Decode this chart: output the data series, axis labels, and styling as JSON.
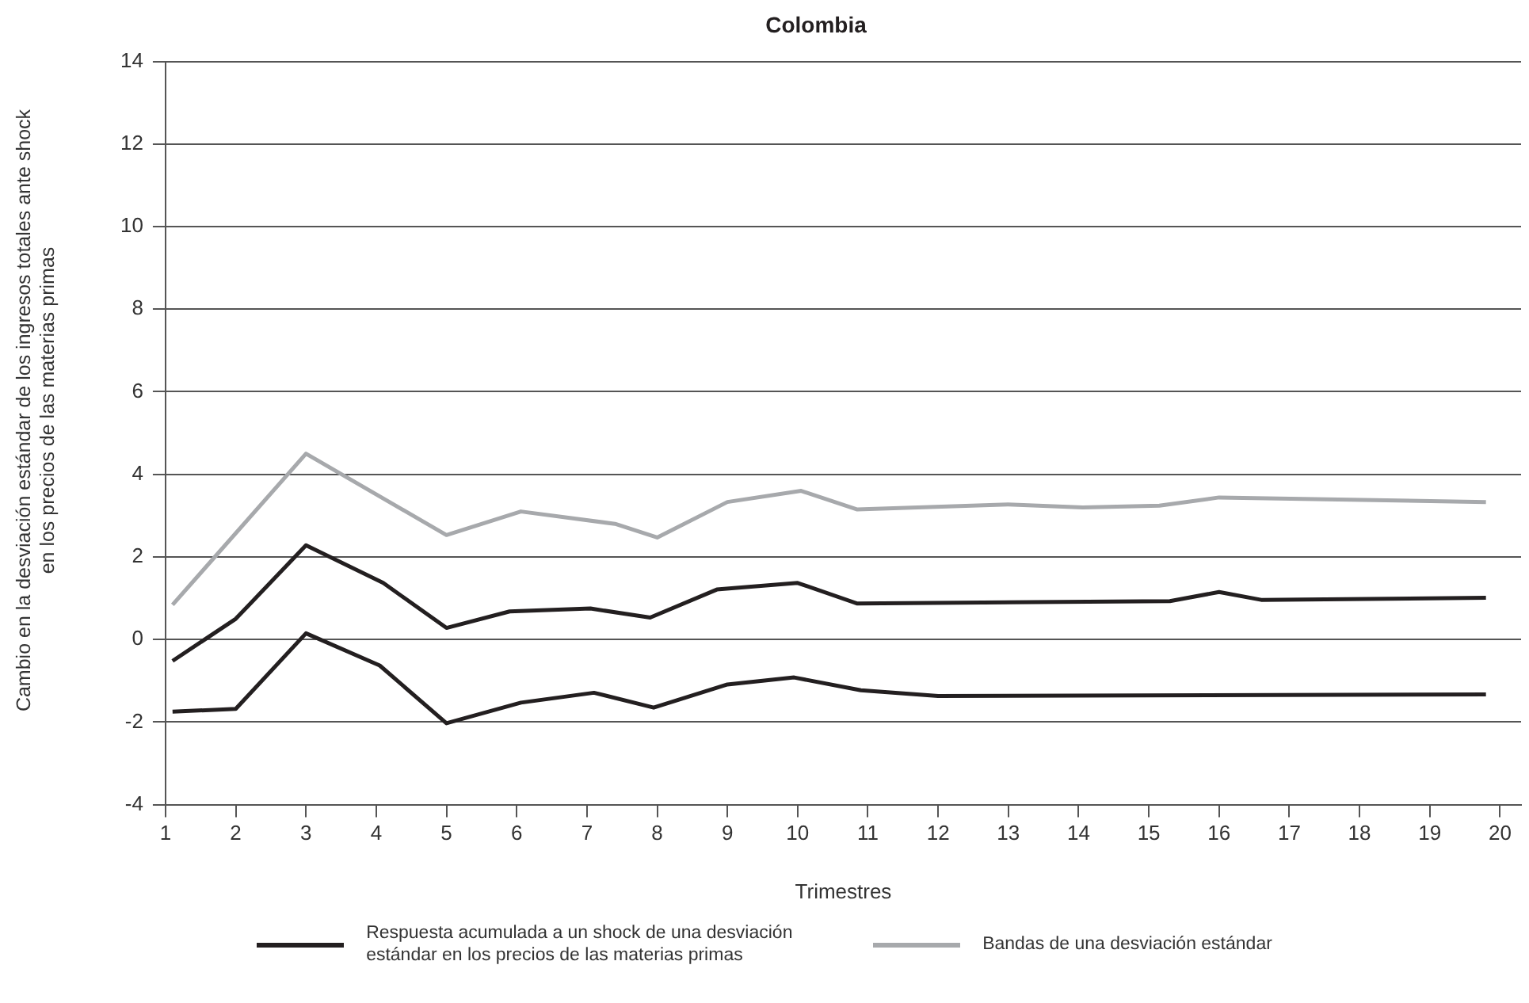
{
  "chart_data": {
    "type": "line",
    "title": "Colombia",
    "xlabel": "Trimestres",
    "ylabel": "Cambio en la desviación estándar de los ingresos totales ante shock en los precios de las materias primas",
    "xlim": [
      1,
      20.3
    ],
    "xticks": [
      1,
      2,
      3,
      4,
      5,
      6,
      7,
      8,
      9,
      10,
      11,
      12,
      13,
      14,
      15,
      16,
      17,
      18,
      19,
      20
    ],
    "ylim": [
      -4,
      14
    ],
    "yticks": [
      -4,
      -2,
      0,
      2,
      4,
      6,
      8,
      10,
      12,
      14
    ],
    "grid": "y",
    "legend": "bottom",
    "marker": "none",
    "line_style": "solid",
    "series": [
      {
        "name": "Respuesta acumulada a un shock de una desviación estándar en los precios de las materias primas",
        "color": "#231f20",
        "x": [
          1.1,
          2.0,
          3.0,
          4.1,
          5.0,
          5.9,
          7.05,
          7.9,
          8.85,
          10.0,
          10.85,
          15.3,
          16.0,
          16.6,
          19.8
        ],
        "values": [
          -0.52,
          0.5,
          2.28,
          1.37,
          0.28,
          0.68,
          0.75,
          0.53,
          1.21,
          1.37,
          0.87,
          0.93,
          1.15,
          0.96,
          1.01
        ]
      },
      {
        "color": "#231f20",
        "x": [
          1.1,
          2.0,
          3.0,
          4.05,
          5.0,
          6.06,
          7.1,
          7.95,
          9.0,
          9.95,
          10.9,
          12.0,
          19.8
        ],
        "values": [
          -1.75,
          -1.68,
          0.15,
          -0.63,
          -2.03,
          -1.53,
          -1.29,
          -1.65,
          -1.09,
          -0.92,
          -1.23,
          -1.37,
          -1.33
        ]
      },
      {
        "name": "Bandas de una desviación estándar",
        "color": "#a7a9ac",
        "x": [
          1.1,
          3.0,
          5.0,
          6.06,
          7.4,
          8.0,
          9.0,
          10.05,
          10.85,
          13.0,
          14.06,
          15.15,
          16.0,
          19.8
        ],
        "values": [
          0.84,
          4.5,
          2.53,
          3.1,
          2.8,
          2.47,
          3.33,
          3.6,
          3.15,
          3.27,
          3.2,
          3.24,
          3.44,
          3.33
        ]
      }
    ]
  }
}
